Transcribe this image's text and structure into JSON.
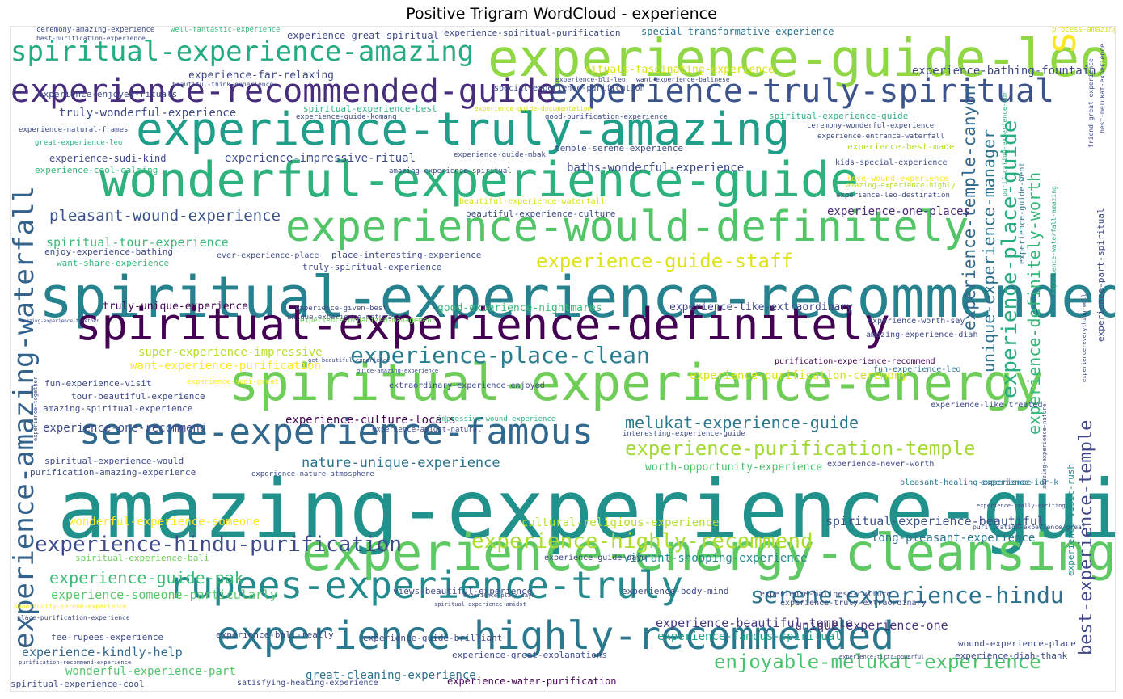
{
  "chart_data": {
    "type": "wordcloud",
    "title": "Positive Trigram WordCloud - experience",
    "colormap": "viridis",
    "words": [
      {
        "text": "amazing-experience-guide",
        "size": 100,
        "color": "#21918c"
      },
      {
        "text": "spiritual-experience-recommended",
        "size": 70,
        "color": "#26828e"
      },
      {
        "text": "experience-guide-leo",
        "size": 64,
        "color": "#8fd744"
      },
      {
        "text": "spiritual-experience-energy",
        "size": 62,
        "color": "#6ece58"
      },
      {
        "text": "experience-energy-cleansing",
        "size": 62,
        "color": "#5ec962"
      },
      {
        "text": "wonderful-experience-guide",
        "size": 60,
        "color": "#2db27d"
      },
      {
        "text": "experience-truly-amazing",
        "size": 56,
        "color": "#1f9e89"
      },
      {
        "text": "spiritual-experience-definitely",
        "size": 54,
        "color": "#440154"
      },
      {
        "text": "experience-would-definitely",
        "size": 52,
        "color": "#52c569"
      },
      {
        "text": "soul-good-experience",
        "size": 50,
        "color": "#fde725"
      },
      {
        "text": "experience-highly-recommended",
        "size": 48,
        "color": "#2a788e"
      },
      {
        "text": "rupees-experience-truly",
        "size": 46,
        "color": "#238a8d"
      },
      {
        "text": "serene-experience-famous",
        "size": 44,
        "color": "#31688e"
      },
      {
        "text": "experience-truly-spiritual",
        "size": 40,
        "color": "#3b528b"
      },
      {
        "text": "experience-recommended-guide",
        "size": 40,
        "color": "#472d7b"
      },
      {
        "text": "experience-amazing-waterfall",
        "size": 34,
        "color": "#33638d"
      },
      {
        "text": "spiritual-experience-amazing",
        "size": 34,
        "color": "#25ac82"
      },
      {
        "text": "experience-place-clean",
        "size": 28,
        "color": "#287d8e"
      },
      {
        "text": "serene-experience-hindu",
        "size": 28,
        "color": "#2c728e"
      },
      {
        "text": "experience-hindu-purification",
        "size": 26,
        "color": "#3e4a89"
      },
      {
        "text": "experience-highly-recommend",
        "size": 26,
        "color": "#addc30"
      },
      {
        "text": "experience-place-guide",
        "size": 26,
        "color": "#27ad81"
      },
      {
        "text": "experience-guide-staff",
        "size": 24,
        "color": "#dde318"
      },
      {
        "text": "experience-purification-temple",
        "size": 24,
        "color": "#a2da37"
      },
      {
        "text": "enjoyable-melukat-experience",
        "size": 24,
        "color": "#4ac16d"
      },
      {
        "text": "best-experience-temple",
        "size": 22,
        "color": "#404688"
      },
      {
        "text": "experience-temple-canyon",
        "size": 21,
        "color": "#31688e"
      },
      {
        "text": "experience-definitely-worth",
        "size": 20,
        "color": "#35b779"
      },
      {
        "text": "unique-experience-manager",
        "size": 20,
        "color": "#2c728e"
      },
      {
        "text": "melukat-experience-guide",
        "size": 20,
        "color": "#2a788e"
      },
      {
        "text": "experience-guide-pak",
        "size": 20,
        "color": "#3aba76"
      },
      {
        "text": "pleasant-wound-experience",
        "size": 19,
        "color": "#3b528b"
      },
      {
        "text": "nature-unique-experience",
        "size": 17,
        "color": "#2c728e"
      },
      {
        "text": "experience-beautiful-temple",
        "size": 15,
        "color": "#453781"
      },
      {
        "text": "experience-someone-particularly",
        "size": 15,
        "color": "#56c667"
      },
      {
        "text": "spiritual-experience-beautiful",
        "size": 15,
        "color": "#3b528b"
      },
      {
        "text": "spiritual-tour-experience",
        "size": 15,
        "color": "#3aba76"
      },
      {
        "text": "experience-kindly-help",
        "size": 15,
        "color": "#31688e"
      },
      {
        "text": "unique-experience-one",
        "size": 15,
        "color": "#46337f"
      },
      {
        "text": "wonderful-experience-someone",
        "size": 14,
        "color": "#fde725"
      },
      {
        "text": "wonderful-experience-part",
        "size": 14,
        "color": "#52c569"
      },
      {
        "text": "experience-bathing-fountain",
        "size": 14,
        "color": "#404688"
      },
      {
        "text": "experience-impressive-ritual",
        "size": 14,
        "color": "#3e4a89"
      },
      {
        "text": "baths-wonderful-experience",
        "size": 14,
        "color": "#3e4a89"
      },
      {
        "text": "experience-one-recommend",
        "size": 14,
        "color": "#3e4a89"
      },
      {
        "text": "experience-one-places",
        "size": 14,
        "color": "#482878"
      },
      {
        "text": "experience-culture-locals",
        "size": 14,
        "color": "#440154"
      },
      {
        "text": "great-cleaning-experience",
        "size": 14,
        "color": "#2c728e"
      },
      {
        "text": "experience-famous-spiritual",
        "size": 14,
        "color": "#1fa188"
      },
      {
        "text": "vibrant-shopping-experience",
        "size": 14,
        "color": "#238a8d"
      },
      {
        "text": "experience-purification-ceremony",
        "size": 14,
        "color": "#d8e219"
      },
      {
        "text": "want-experience-purification",
        "size": 14,
        "color": "#fde725"
      },
      {
        "text": "super-experience-impressive",
        "size": 14,
        "color": "#b5de2b"
      },
      {
        "text": "cultural-religious-experience",
        "size": 14,
        "color": "#b5de2b"
      },
      {
        "text": "long-pleasant-experience",
        "size": 14,
        "color": "#2c728e"
      },
      {
        "text": "truly-wonderful-experience",
        "size": 14,
        "color": "#3e4a89"
      },
      {
        "text": "experience-like-extraordinary",
        "size": 13,
        "color": "#3e4a89"
      },
      {
        "text": "good-experience-nightmares",
        "size": 13,
        "color": "#3aba76"
      },
      {
        "text": "experience-far-relaxing",
        "size": 13,
        "color": "#3e4a89"
      },
      {
        "text": "worth-opportunity-experience",
        "size": 13,
        "color": "#4ac16d"
      },
      {
        "text": "truly-unique-experience",
        "size": 13,
        "color": "#440154"
      },
      {
        "text": "rituals-fascinating-experience",
        "size": 13,
        "color": "#d8e219"
      },
      {
        "text": "experience-great-spiritual",
        "size": 12,
        "color": "#3e4a89"
      },
      {
        "text": "special-transformative-experience",
        "size": 12,
        "color": "#2c728e"
      },
      {
        "text": "experience-sudi-kind",
        "size": 12,
        "color": "#3e4a89"
      },
      {
        "text": "experience-spiritual-purification",
        "size": 11,
        "color": "#3e4a89"
      },
      {
        "text": "experience-visit-rush",
        "size": 11,
        "color": "#21918c"
      },
      {
        "text": "experience-part-spiritual",
        "size": 11,
        "color": "#3e4a89"
      },
      {
        "text": "fun-experience-visit",
        "size": 11,
        "color": "#3e4a89"
      },
      {
        "text": "temple-serene-experience",
        "size": 11,
        "color": "#3e4a89"
      },
      {
        "text": "tour-beautiful-experience",
        "size": 11,
        "color": "#3e4a89"
      },
      {
        "text": "amazing-spiritual-experience",
        "size": 11,
        "color": "#3e4a89"
      },
      {
        "text": "purification-amazing-experience",
        "size": 11,
        "color": "#3e4a89"
      },
      {
        "text": "spiritual-experience-would",
        "size": 11,
        "color": "#3e4a89"
      },
      {
        "text": "spiritual-experience-bali",
        "size": 11,
        "color": "#6ece58"
      },
      {
        "text": "enjoy-experience-bathing",
        "size": 11,
        "color": "#3e4a89"
      },
      {
        "text": "want-share-experience",
        "size": 11,
        "color": "#35b779"
      },
      {
        "text": "spiritual-experience-best",
        "size": 11,
        "color": "#2db27d"
      },
      {
        "text": "spiritual-experience-guide",
        "size": 11,
        "color": "#2db27d"
      },
      {
        "text": "experience-best-made",
        "size": 11,
        "color": "#b5de2b"
      },
      {
        "text": "experience-cool-calming",
        "size": 11,
        "color": "#35b779"
      },
      {
        "text": "experience-enjoyed-rituals",
        "size": 11,
        "color": "#3e4a89"
      },
      {
        "text": "experience-worth-say",
        "size": 10,
        "color": "#3e4a89"
      },
      {
        "text": "amazing-experience-diah",
        "size": 10,
        "color": "#3e4a89"
      },
      {
        "text": "fun-experience-leo",
        "size": 10,
        "color": "#2c728e"
      },
      {
        "text": "purification-experience-recommend",
        "size": 10,
        "color": "#440154"
      },
      {
        "text": "experience-like-treated",
        "size": 10,
        "color": "#3e4a89"
      },
      {
        "text": "pleasant-healing-experience",
        "size": 10,
        "color": "#2c728e"
      },
      {
        "text": "experience-idr-k",
        "size": 10,
        "color": "#2c728e"
      },
      {
        "text": "experience-never-worth",
        "size": 10,
        "color": "#3e4a89"
      },
      {
        "text": "experience-guide-dayu",
        "size": 10,
        "color": "#3e4a89"
      },
      {
        "text": "views-beautiful-experience",
        "size": 11,
        "color": "#3e4a89"
      },
      {
        "text": "experience-body-mind",
        "size": 11,
        "color": "#3e4a89"
      },
      {
        "text": "experience-truly-extraordinary",
        "size": 10,
        "color": "#3e4a89"
      },
      {
        "text": "experience-balinese-culture",
        "size": 10,
        "color": "#3e4a89"
      },
      {
        "text": "experience-bali-really",
        "size": 11,
        "color": "#3e4a89"
      },
      {
        "text": "experience-guide-brilliant",
        "size": 11,
        "color": "#3e4a89"
      },
      {
        "text": "experience-great-explanations",
        "size": 11,
        "color": "#3e4a89"
      },
      {
        "text": "fee-rupees-experience",
        "size": 11,
        "color": "#3e4a89"
      },
      {
        "text": "experience-water-purification",
        "size": 12,
        "color": "#440154"
      },
      {
        "text": "satisfying-healing-experience",
        "size": 10,
        "color": "#3e4a89"
      },
      {
        "text": "spiritual-experience-cool",
        "size": 11,
        "color": "#3e4a89"
      },
      {
        "text": "wound-experience-place",
        "size": 11,
        "color": "#3e4a89"
      },
      {
        "text": "experience-diah-thank",
        "size": 11,
        "color": "#3e4a89"
      },
      {
        "text": "place-interesting-experience",
        "size": 11,
        "color": "#3e4a89"
      },
      {
        "text": "truly-spiritual-experience",
        "size": 11,
        "color": "#3e4a89"
      },
      {
        "text": "ever-experience-place",
        "size": 10,
        "color": "#3e4a89"
      },
      {
        "text": "experience-given-best",
        "size": 9,
        "color": "#3e4a89"
      },
      {
        "text": "unique-experience-natural",
        "size": 9,
        "color": "#3e4a89"
      },
      {
        "text": "experience-organized-management",
        "size": 9,
        "color": "#6ece58"
      },
      {
        "text": "extraordinary-experience-enjoyed",
        "size": 10,
        "color": "#3e4a89"
      },
      {
        "text": "experience-sudi-great",
        "size": 9,
        "color": "#fde725"
      },
      {
        "text": "experience-amidst-natural",
        "size": 9,
        "color": "#3e4a89"
      },
      {
        "text": "impressive-wound-experience",
        "size": 9,
        "color": "#2db27d"
      },
      {
        "text": "interesting-experience-guide",
        "size": 9,
        "color": "#3e4a89"
      },
      {
        "text": "experience-nature-atmosphere",
        "size": 9,
        "color": "#3e4a89"
      },
      {
        "text": "experience-guide-komang",
        "size": 9,
        "color": "#3e4a89"
      },
      {
        "text": "good-purification-experience",
        "size": 9,
        "color": "#3e4a89"
      },
      {
        "text": "ceremony-wonderful-experience",
        "size": 9,
        "color": "#3e4a89"
      },
      {
        "text": "experience-entrance-waterfall",
        "size": 9,
        "color": "#3e4a89"
      },
      {
        "text": "experience-guide-mbak",
        "size": 9,
        "color": "#3e4a89"
      },
      {
        "text": "amazing-experience-spiritual",
        "size": 9,
        "color": "#3e4a89"
      },
      {
        "text": "kids-special-experience",
        "size": 10,
        "color": "#3e4a89"
      },
      {
        "text": "experience-leo-destination",
        "size": 9,
        "color": "#3e4a89"
      },
      {
        "text": "love-wound-experience",
        "size": 10,
        "color": "#fde725"
      },
      {
        "text": "amazing-experience-highly",
        "size": 9,
        "color": "#b5de2b"
      },
      {
        "text": "beautiful-experience-culture",
        "size": 11,
        "color": "#3e4a89"
      },
      {
        "text": "beautiful-experience-waterfall",
        "size": 10,
        "color": "#d8e219"
      },
      {
        "text": "special-experience-purification",
        "size": 10,
        "color": "#3e4a89"
      },
      {
        "text": "experience-natural-frames",
        "size": 9,
        "color": "#3e4a89"
      },
      {
        "text": "great-experience-leo",
        "size": 9,
        "color": "#2db27d"
      },
      {
        "text": "ceremony-amazing-experience",
        "size": 9,
        "color": "#3e4a89"
      },
      {
        "text": "well-fantastic-experience",
        "size": 9,
        "color": "#35b779"
      },
      {
        "text": "best-purification-experience",
        "size": 8,
        "color": "#3e4a89"
      },
      {
        "text": "beautiful-think-experience",
        "size": 8,
        "color": "#3e4a89"
      },
      {
        "text": "process-amazing-experience",
        "size": 9,
        "color": "#d8e219"
      },
      {
        "text": "experience-bli-leo",
        "size": 8,
        "color": "#3e4a89"
      },
      {
        "text": "want-experience-balinese",
        "size": 8,
        "color": "#3e4a89"
      },
      {
        "text": "experience-guide-documentation",
        "size": 8,
        "color": "#d8e219"
      },
      {
        "text": "get-beautiful-experience",
        "size": 7,
        "color": "#3e4a89"
      },
      {
        "text": "guide-amazing-experience",
        "size": 7,
        "color": "#3e4a89"
      },
      {
        "text": "experience-guide-went",
        "size": 10,
        "color": "#2c728e"
      },
      {
        "text": "purification-experience-great",
        "size": 8,
        "color": "#3e4a89"
      },
      {
        "text": "opportunity-serene-experience",
        "size": 8,
        "color": "#fde725"
      },
      {
        "text": "place-purification-experience",
        "size": 8,
        "color": "#3e4a89"
      },
      {
        "text": "purification-recommend-experience",
        "size": 7,
        "color": "#3e4a89"
      },
      {
        "text": "experience-place-dayu",
        "size": 7,
        "color": "#3e4a89"
      },
      {
        "text": "spiritual-experience-amidst",
        "size": 7,
        "color": "#3e4a89"
      },
      {
        "text": "experience-tirta-powerful",
        "size": 7,
        "color": "#3e4a89"
      },
      {
        "text": "friend-great-experience",
        "size": 8,
        "color": "#3e4a89"
      },
      {
        "text": "best-melukat-experience",
        "size": 8,
        "color": "#3e4a89"
      },
      {
        "text": "experience-waterfall-amazing",
        "size": 8,
        "color": "#2db27d"
      },
      {
        "text": "experience-everything-well",
        "size": 7,
        "color": "#3e4a89"
      },
      {
        "text": "experience-really-exciting",
        "size": 7,
        "color": "#3e4a89"
      },
      {
        "text": "amazing-experience-nature",
        "size": 7,
        "color": "#3e4a89"
      },
      {
        "text": "experience-together",
        "size": 7,
        "color": "#3e4a89"
      },
      {
        "text": "amazing-experience-together",
        "size": 6,
        "color": "#3e4a89"
      },
      {
        "text": "purification-experience-idr",
        "size": 8,
        "color": "#2db27d"
      }
    ]
  }
}
